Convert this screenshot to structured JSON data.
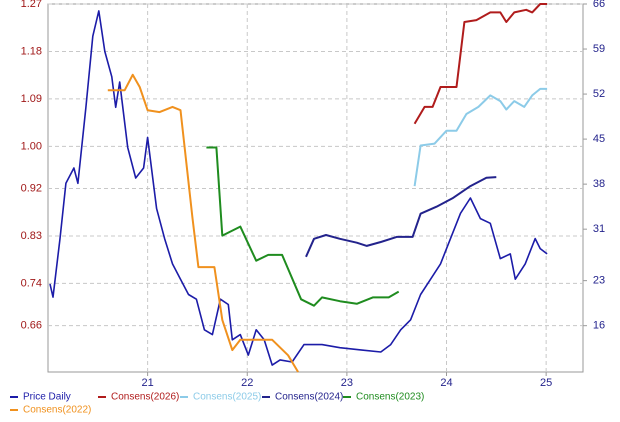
{
  "chart_data": {
    "type": "line",
    "xlim": [
      20,
      25.37
    ],
    "xticks": [
      21,
      22,
      23,
      24,
      25
    ],
    "ylim": [
      0.572,
      1.27
    ],
    "yticks": [
      0.66,
      0.74,
      0.83,
      0.92,
      {
        "value": 1,
        "label": "1.00"
      },
      1.09,
      1.18,
      1.27
    ],
    "y2lim": [
      8.8,
      66
    ],
    "y2ticks": [
      16,
      23,
      31,
      38,
      45,
      52,
      59,
      66
    ],
    "grid": true,
    "legend": "bottom",
    "series": [
      {
        "name": "Price Daily",
        "color": "#1c1ca8",
        "axis": "y",
        "x": [
          20.02,
          20.05,
          20.12,
          20.18,
          20.26,
          20.3,
          20.38,
          20.45,
          20.51,
          20.57,
          20.64,
          20.68,
          20.72,
          20.8,
          20.88,
          20.96,
          21.0,
          21.09,
          21.17,
          21.25,
          21.33,
          21.41,
          21.49,
          21.57,
          21.65,
          21.73,
          21.81,
          21.85,
          21.93,
          22.01,
          22.09,
          22.17,
          22.25,
          22.33,
          22.45,
          22.57,
          22.75,
          22.93,
          23.14,
          23.34,
          23.44,
          23.54,
          23.64,
          23.74,
          23.84,
          23.94,
          24.04,
          24.14,
          24.24,
          24.34,
          24.44,
          24.54,
          24.64,
          24.69,
          24.79,
          24.89,
          24.94,
          25.01
        ],
        "values": [
          0.739,
          0.714,
          0.825,
          0.93,
          0.959,
          0.93,
          1.074,
          1.209,
          1.257,
          1.18,
          1.132,
          1.074,
          1.122,
          0.998,
          0.94,
          0.959,
          1.017,
          0.882,
          0.825,
          0.777,
          0.748,
          0.719,
          0.71,
          0.652,
          0.643,
          0.71,
          0.7,
          0.633,
          0.643,
          0.604,
          0.652,
          0.633,
          0.585,
          0.595,
          0.591,
          0.624,
          0.624,
          0.618,
          0.614,
          0.61,
          0.624,
          0.652,
          0.671,
          0.719,
          0.748,
          0.777,
          0.825,
          0.873,
          0.902,
          0.863,
          0.854,
          0.787,
          0.796,
          0.748,
          0.777,
          0.825,
          0.806,
          0.796
        ]
      },
      {
        "name": "Consens(2026)",
        "color": "#b01c1c",
        "axis": "y2",
        "x": [
          23.68,
          23.78,
          23.86,
          23.94,
          24.1,
          24.18,
          24.3,
          24.44,
          24.54,
          24.6,
          24.68,
          24.8,
          24.86,
          24.94,
          25.01
        ],
        "values": [
          47.4,
          50.0,
          50.0,
          53.1,
          53.1,
          63.2,
          63.5,
          64.7,
          64.7,
          63.2,
          64.7,
          65.1,
          64.7,
          66.0,
          66.0
        ]
      },
      {
        "name": "Consens(2025)",
        "color": "#8ccbe8",
        "axis": "y2",
        "x": [
          23.68,
          23.74,
          23.88,
          24.0,
          24.1,
          24.2,
          24.32,
          24.44,
          24.54,
          24.6,
          24.68,
          24.78,
          24.86,
          24.94,
          25.01
        ],
        "values": [
          37.7,
          44.0,
          44.3,
          46.3,
          46.3,
          48.9,
          50.0,
          51.8,
          50.9,
          49.6,
          50.9,
          50.0,
          51.8,
          52.8,
          52.8
        ]
      },
      {
        "name": "Consens(2024)",
        "color": "#23238c",
        "axis": "y2",
        "x": [
          22.59,
          22.67,
          22.79,
          22.93,
          23.1,
          23.2,
          23.34,
          23.5,
          23.66,
          23.74,
          23.9,
          24.06,
          24.24,
          24.4,
          24.5
        ],
        "values": [
          26.7,
          29.5,
          30.1,
          29.5,
          28.9,
          28.4,
          29.0,
          29.8,
          29.8,
          33.4,
          34.5,
          35.8,
          37.7,
          39.0,
          39.1
        ]
      },
      {
        "name": "Consens(2023)",
        "color": "#1f8c1f",
        "axis": "y2",
        "x": [
          21.59,
          21.69,
          21.75,
          21.93,
          22.09,
          22.21,
          22.35,
          22.54,
          22.67,
          22.75,
          22.93,
          23.1,
          23.26,
          23.42,
          23.52
        ],
        "values": [
          43.7,
          43.7,
          30.0,
          31.4,
          26.1,
          27.0,
          27.0,
          20.1,
          19.1,
          20.4,
          19.8,
          19.4,
          20.4,
          20.4,
          21.3
        ]
      },
      {
        "name": "Consens(2022)",
        "color": "#f0911e",
        "axis": "y2",
        "x": [
          20.6,
          20.77,
          20.85,
          20.92,
          21.0,
          21.12,
          21.25,
          21.33,
          21.45,
          21.51,
          21.67,
          21.75,
          21.85,
          21.93,
          22.09,
          22.25,
          22.41,
          22.51
        ],
        "values": [
          52.6,
          52.6,
          55.0,
          53.1,
          49.5,
          49.2,
          50.0,
          49.5,
          32.7,
          25.1,
          25.1,
          16.9,
          12.2,
          13.8,
          13.8,
          13.8,
          11.4,
          8.8
        ]
      }
    ]
  }
}
